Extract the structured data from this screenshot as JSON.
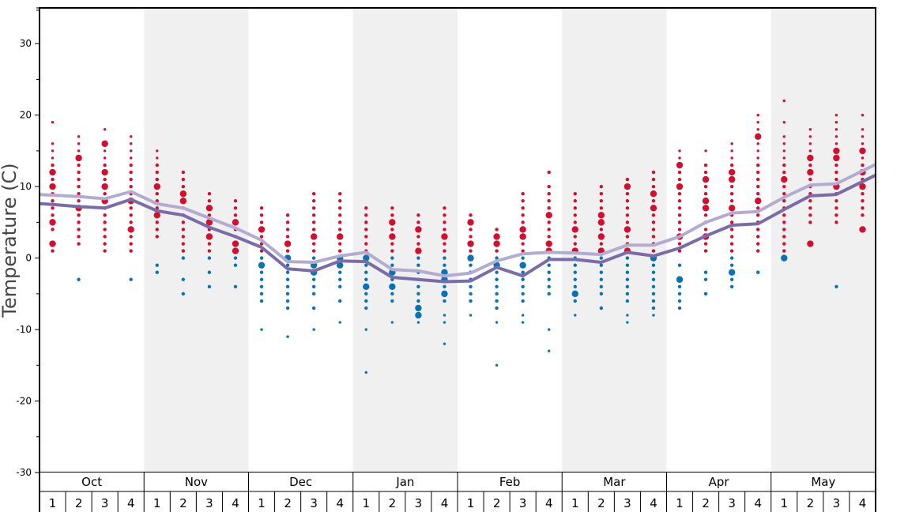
{
  "chart_data": {
    "type": "scatter",
    "ylabel": "Temperature (C)",
    "ylim": [
      -30,
      35
    ],
    "yticks": [
      -30,
      -20,
      -10,
      0,
      10,
      20,
      30
    ],
    "months": [
      "Oct",
      "Nov",
      "Dec",
      "Jan",
      "Feb",
      "Mar",
      "Apr",
      "May"
    ],
    "weeks": [
      "1",
      "2",
      "3",
      "4"
    ],
    "colors": {
      "warm": "#d0102e",
      "cold": "#0a72b0",
      "avg_high": "#b3abd0",
      "avg_low": "#7b6ca8",
      "band": "#f0f0f0"
    },
    "x": [
      1,
      2,
      3,
      4,
      5,
      6,
      7,
      8,
      9,
      10,
      11,
      12,
      13,
      14,
      15,
      16,
      17,
      18,
      19,
      20,
      21,
      22,
      23,
      24,
      25,
      26,
      27,
      28,
      29,
      30,
      31,
      32
    ],
    "series": [
      {
        "key": "avg_high",
        "values": [
          8.8,
          8.6,
          8.3,
          9.3,
          7.6,
          7.0,
          5.6,
          4.2,
          2.5,
          -0.5,
          -0.6,
          0.3,
          0.8,
          -1.6,
          -1.8,
          -2.5,
          -2.1,
          -0.4,
          0.6,
          0.8,
          0.7,
          0.5,
          1.8,
          1.8,
          3.0,
          5.0,
          6.3,
          6.5,
          8.5,
          10.2,
          10.4,
          12.2
        ]
      },
      {
        "key": "avg_low",
        "values": [
          7.5,
          7.2,
          7.0,
          8.2,
          6.6,
          6.0,
          4.3,
          3.0,
          1.5,
          -1.5,
          -1.8,
          -0.4,
          -0.5,
          -2.7,
          -3.0,
          -3.3,
          -3.2,
          -1.3,
          -2.5,
          -0.2,
          -0.2,
          -0.6,
          0.8,
          0.3,
          1.4,
          3.1,
          4.6,
          4.8,
          6.8,
          8.7,
          8.9,
          10.7
        ]
      }
    ],
    "observations": [
      {
        "week": 1,
        "temps": [
          19,
          16,
          15,
          14,
          13,
          12,
          11,
          10,
          9,
          8,
          7,
          6,
          5,
          4,
          2,
          1
        ],
        "big": [
          12,
          10,
          5,
          2
        ]
      },
      {
        "week": 2,
        "temps": [
          17,
          16,
          15,
          14,
          13,
          12,
          11,
          10,
          9,
          8,
          7,
          6,
          5,
          4,
          3,
          2,
          -3
        ],
        "big": [
          14,
          7
        ]
      },
      {
        "week": 3,
        "temps": [
          18,
          16,
          15,
          14,
          13,
          12,
          11,
          10,
          9,
          8,
          7,
          6,
          5,
          4,
          3,
          2,
          1
        ],
        "big": [
          16,
          12,
          10,
          8
        ]
      },
      {
        "week": 4,
        "temps": [
          17,
          16,
          15,
          14,
          13,
          12,
          11,
          10,
          9,
          8,
          7,
          6,
          5,
          4,
          3,
          2,
          1,
          -3
        ],
        "big": [
          8,
          4
        ]
      },
      {
        "week": 5,
        "temps": [
          15,
          14,
          13,
          12,
          11,
          10,
          9,
          8,
          7,
          6,
          5,
          4,
          3,
          -1,
          -2
        ],
        "big": [
          10,
          6
        ]
      },
      {
        "week": 6,
        "temps": [
          12,
          11,
          10,
          9,
          8,
          7,
          6,
          5,
          4,
          3,
          2,
          1,
          0,
          -3,
          -5
        ],
        "big": [
          9,
          8
        ]
      },
      {
        "week": 7,
        "temps": [
          9,
          8,
          7,
          6,
          5,
          4,
          3,
          2,
          1,
          0,
          -2,
          -4
        ],
        "big": [
          7,
          5,
          3
        ]
      },
      {
        "week": 8,
        "temps": [
          8,
          7,
          6,
          5,
          4,
          3,
          2,
          1,
          0,
          -1,
          -4
        ],
        "big": [
          5,
          2,
          1
        ]
      },
      {
        "week": 9,
        "temps": [
          7,
          6,
          5,
          4,
          3,
          2,
          1,
          0,
          -1,
          -2,
          -3,
          -4,
          -5,
          -6,
          -10
        ],
        "big": [
          4,
          -1
        ]
      },
      {
        "week": 10,
        "temps": [
          6,
          5,
          4,
          3,
          2,
          1,
          0,
          -1,
          -2,
          -3,
          -4,
          -5,
          -6,
          -7,
          -11
        ],
        "big": [
          2,
          0
        ]
      },
      {
        "week": 11,
        "temps": [
          9,
          8,
          7,
          6,
          5,
          4,
          3,
          2,
          1,
          0,
          -1,
          -2,
          -3,
          -4,
          -5,
          -7,
          -10
        ],
        "big": [
          3,
          -1,
          -2
        ]
      },
      {
        "week": 12,
        "temps": [
          9,
          8,
          7,
          6,
          5,
          4,
          3,
          2,
          1,
          0,
          -1,
          -2,
          -3,
          -4,
          -6,
          -9
        ],
        "big": [
          3,
          0,
          -1
        ]
      },
      {
        "week": 13,
        "temps": [
          7,
          6,
          5,
          4,
          3,
          2,
          1,
          0,
          -1,
          -2,
          -3,
          -4,
          -5,
          -6,
          -7,
          -10,
          -16
        ],
        "big": [
          0,
          -4
        ]
      },
      {
        "week": 14,
        "temps": [
          7,
          6,
          5,
          4,
          3,
          2,
          1,
          0,
          -1,
          -2,
          -3,
          -4,
          -5,
          -6,
          -9
        ],
        "big": [
          5,
          3,
          -2,
          -4
        ]
      },
      {
        "week": 15,
        "temps": [
          6,
          5,
          4,
          3,
          2,
          1,
          0,
          -1,
          -2,
          -3,
          -4,
          -5,
          -6,
          -7,
          -8,
          -9
        ],
        "big": [
          4,
          1,
          -7,
          -8
        ]
      },
      {
        "week": 16,
        "temps": [
          7,
          6,
          5,
          4,
          3,
          2,
          1,
          0,
          -1,
          -2,
          -3,
          -4,
          -5,
          -6,
          -8,
          -9,
          -12
        ],
        "big": [
          3,
          -2,
          -3,
          -5
        ]
      },
      {
        "week": 17,
        "temps": [
          6,
          5,
          4,
          3,
          2,
          1,
          0,
          -1,
          -2,
          -3,
          -4,
          -5,
          -6,
          -8
        ],
        "big": [
          5,
          2,
          0
        ]
      },
      {
        "week": 18,
        "temps": [
          4,
          3,
          2,
          1,
          0,
          -1,
          -2,
          -3,
          -4,
          -5,
          -6,
          -7,
          -9,
          -15
        ],
        "big": [
          3,
          2,
          -1
        ]
      },
      {
        "week": 19,
        "temps": [
          9,
          8,
          7,
          6,
          5,
          4,
          3,
          2,
          1,
          0,
          -1,
          -2,
          -3,
          -4,
          -5,
          -6,
          -8,
          -9
        ],
        "big": [
          4,
          3,
          -1
        ]
      },
      {
        "week": 20,
        "temps": [
          12,
          10,
          9,
          8,
          7,
          6,
          5,
          4,
          3,
          2,
          1,
          0,
          -1,
          -2,
          -3,
          -4,
          -5,
          -10,
          -13
        ],
        "big": [
          6,
          2,
          1
        ]
      },
      {
        "week": 21,
        "temps": [
          9,
          8,
          7,
          6,
          5,
          4,
          3,
          2,
          1,
          0,
          -1,
          -2,
          -3,
          -4,
          -5,
          -6,
          -8
        ],
        "big": [
          4,
          1,
          -5
        ]
      },
      {
        "week": 22,
        "temps": [
          10,
          9,
          8,
          7,
          6,
          5,
          4,
          3,
          2,
          1,
          0,
          -1,
          -2,
          -3,
          -4,
          -5,
          -7
        ],
        "big": [
          6,
          5,
          3,
          1
        ]
      },
      {
        "week": 23,
        "temps": [
          11,
          10,
          9,
          8,
          7,
          6,
          5,
          4,
          3,
          2,
          1,
          0,
          -1,
          -2,
          -3,
          -4,
          -5,
          -6,
          -8,
          -9
        ],
        "big": [
          10,
          4,
          1
        ]
      },
      {
        "week": 24,
        "temps": [
          12,
          11,
          10,
          9,
          8,
          7,
          6,
          5,
          4,
          3,
          2,
          1,
          0,
          -1,
          -2,
          -3,
          -4,
          -5,
          -6,
          -7,
          -8
        ],
        "big": [
          9,
          7,
          0
        ]
      },
      {
        "week": 25,
        "temps": [
          15,
          14,
          13,
          12,
          11,
          10,
          9,
          8,
          7,
          6,
          5,
          4,
          3,
          2,
          1,
          -1,
          -3,
          -4,
          -5,
          -6,
          -7
        ],
        "big": [
          13,
          10,
          3,
          -3
        ]
      },
      {
        "week": 26,
        "temps": [
          15,
          13,
          12,
          11,
          10,
          9,
          8,
          7,
          6,
          5,
          4,
          3,
          2,
          1,
          -2,
          -3,
          -5
        ],
        "big": [
          11,
          8,
          7,
          3
        ]
      },
      {
        "week": 27,
        "temps": [
          16,
          15,
          14,
          13,
          12,
          11,
          10,
          9,
          8,
          7,
          6,
          5,
          4,
          3,
          2,
          1,
          0,
          -1,
          -2,
          -3,
          -4
        ],
        "big": [
          12,
          11,
          7,
          -2
        ]
      },
      {
        "week": 28,
        "temps": [
          20,
          19,
          18,
          17,
          16,
          15,
          14,
          13,
          12,
          11,
          10,
          9,
          8,
          7,
          6,
          5,
          4,
          3,
          2,
          1,
          -2
        ],
        "big": [
          17,
          8
        ]
      },
      {
        "week": 29,
        "temps": [
          22,
          19,
          17,
          16,
          15,
          14,
          13,
          12,
          11,
          10,
          9,
          8,
          7,
          6,
          5,
          4,
          3,
          2,
          1,
          0
        ],
        "big": [
          11,
          0
        ]
      },
      {
        "week": 30,
        "temps": [
          18,
          17,
          16,
          15,
          14,
          13,
          12,
          11,
          10,
          9,
          8,
          7,
          6,
          5,
          2
        ],
        "big": [
          14,
          12,
          2
        ]
      },
      {
        "week": 31,
        "temps": [
          20,
          19,
          18,
          17,
          16,
          15,
          14,
          13,
          12,
          11,
          10,
          9,
          8,
          7,
          6,
          5,
          -4
        ],
        "big": [
          15,
          14,
          10
        ]
      },
      {
        "week": 32,
        "temps": [
          20,
          18,
          17,
          16,
          15,
          14,
          13,
          12,
          11,
          10,
          9,
          8,
          7,
          6,
          4
        ],
        "big": [
          15,
          12,
          10,
          4
        ]
      }
    ]
  }
}
